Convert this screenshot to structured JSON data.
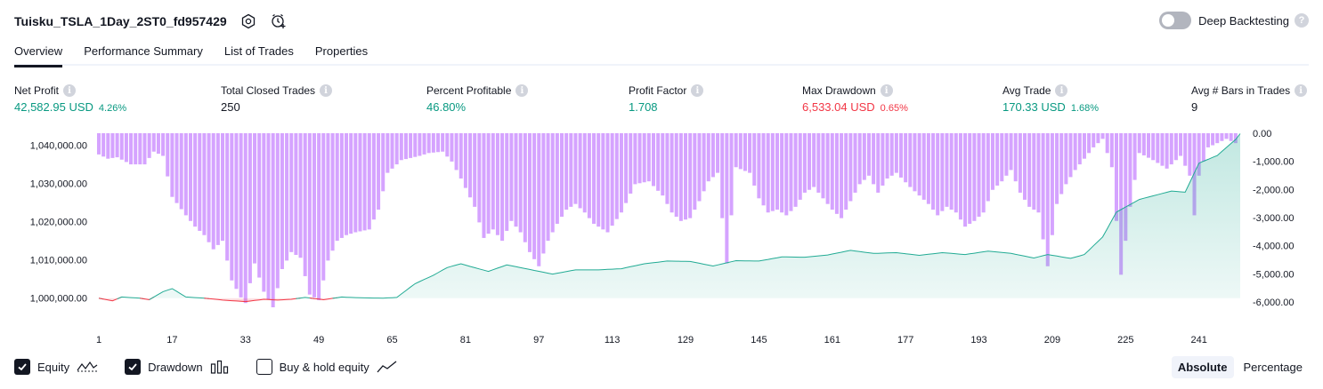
{
  "header": {
    "title": "Tuisku_TSLA_1Day_2ST0_fd957429",
    "deep_backtesting_label": "Deep Backtesting",
    "deep_backtesting_on": false
  },
  "tabs": [
    {
      "label": "Overview",
      "active": true
    },
    {
      "label": "Performance Summary",
      "active": false
    },
    {
      "label": "List of Trades",
      "active": false
    },
    {
      "label": "Properties",
      "active": false
    }
  ],
  "metrics": [
    {
      "label": "Net Profit",
      "value": "42,582.95 USD",
      "pct": "4.26%",
      "tone": "green"
    },
    {
      "label": "Total Closed Trades",
      "value": "250",
      "pct": "",
      "tone": "dark"
    },
    {
      "label": "Percent Profitable",
      "value": "46.80%",
      "pct": "",
      "tone": "green"
    },
    {
      "label": "Profit Factor",
      "value": "1.708",
      "pct": "",
      "tone": "green"
    },
    {
      "label": "Max Drawdown",
      "value": "6,533.04 USD",
      "pct": "0.65%",
      "tone": "red"
    },
    {
      "label": "Avg Trade",
      "value": "170.33 USD",
      "pct": "1.68%",
      "tone": "green"
    },
    {
      "label": "Avg # Bars in Trades",
      "value": "9",
      "pct": "",
      "tone": "dark"
    }
  ],
  "chart_data": {
    "type": "area",
    "x_ticks": [
      1,
      17,
      33,
      49,
      65,
      81,
      97,
      113,
      129,
      145,
      161,
      177,
      193,
      209,
      225,
      241
    ],
    "x_range": [
      1,
      250
    ],
    "left_axis": {
      "ticks": [
        "1,040,000.00",
        "1,030,000.00",
        "1,020,000.00",
        "1,010,000.00",
        "1,000,000.00"
      ],
      "tick_values": [
        1040000,
        1030000,
        1020000,
        1010000,
        1000000
      ],
      "range": [
        997500,
        1043000
      ]
    },
    "right_axis": {
      "ticks": [
        "0.00",
        "-1,000.00",
        "-2,000.00",
        "-3,000.00",
        "-4,000.00",
        "-5,000.00",
        "-6,000.00"
      ],
      "tick_values": [
        0,
        -1000,
        -2000,
        -3000,
        -4000,
        -5000,
        -6000
      ],
      "range": [
        -6150,
        0
      ]
    },
    "equity_anchors": [
      [
        1,
        1000000
      ],
      [
        4,
        999300
      ],
      [
        6,
        1000300
      ],
      [
        10,
        1000000
      ],
      [
        12,
        999600
      ],
      [
        15,
        1001700
      ],
      [
        17,
        1002500
      ],
      [
        20,
        1000300
      ],
      [
        24,
        1000000
      ],
      [
        28,
        999500
      ],
      [
        33,
        999100
      ],
      [
        37,
        999700
      ],
      [
        40,
        999500
      ],
      [
        43,
        999700
      ],
      [
        46,
        1000200
      ],
      [
        50,
        999600
      ],
      [
        54,
        1000300
      ],
      [
        58,
        1000100
      ],
      [
        63,
        1000000
      ],
      [
        66,
        1000200
      ],
      [
        70,
        1003800
      ],
      [
        74,
        1006000
      ],
      [
        77,
        1008000
      ],
      [
        80,
        1009000
      ],
      [
        82,
        1008300
      ],
      [
        86,
        1007000
      ],
      [
        90,
        1008700
      ],
      [
        95,
        1007500
      ],
      [
        100,
        1006300
      ],
      [
        105,
        1007400
      ],
      [
        110,
        1007400
      ],
      [
        115,
        1007700
      ],
      [
        120,
        1009000
      ],
      [
        125,
        1009700
      ],
      [
        130,
        1009600
      ],
      [
        135,
        1008400
      ],
      [
        140,
        1009800
      ],
      [
        145,
        1009700
      ],
      [
        150,
        1010800
      ],
      [
        155,
        1010700
      ],
      [
        160,
        1011300
      ],
      [
        165,
        1012500
      ],
      [
        170,
        1011700
      ],
      [
        175,
        1011900
      ],
      [
        180,
        1011200
      ],
      [
        185,
        1011900
      ],
      [
        190,
        1011400
      ],
      [
        195,
        1012300
      ],
      [
        200,
        1011700
      ],
      [
        205,
        1010500
      ],
      [
        208,
        1011400
      ],
      [
        213,
        1010400
      ],
      [
        216,
        1011400
      ],
      [
        220,
        1016000
      ],
      [
        223,
        1022500
      ],
      [
        228,
        1025800
      ],
      [
        235,
        1028000
      ],
      [
        238,
        1027700
      ],
      [
        241,
        1035300
      ],
      [
        245,
        1037300
      ],
      [
        249,
        1041500
      ],
      [
        250,
        1043000
      ]
    ],
    "drawdown_anchors": [
      [
        1,
        -750
      ],
      [
        3,
        -900
      ],
      [
        5,
        -850
      ],
      [
        8,
        -1100
      ],
      [
        11,
        -1100
      ],
      [
        13,
        -650
      ],
      [
        15,
        -800
      ],
      [
        17,
        -2250
      ],
      [
        20,
        -2900
      ],
      [
        22,
        -3300
      ],
      [
        24,
        -3600
      ],
      [
        26,
        -4100
      ],
      [
        28,
        -3800
      ],
      [
        30,
        -5200
      ],
      [
        32,
        -5800
      ],
      [
        33,
        -6000
      ],
      [
        35,
        -4600
      ],
      [
        37,
        -5600
      ],
      [
        39,
        -6150
      ],
      [
        41,
        -4800
      ],
      [
        43,
        -4200
      ],
      [
        45,
        -4400
      ],
      [
        47,
        -5700
      ],
      [
        49,
        -5900
      ],
      [
        51,
        -4500
      ],
      [
        53,
        -3800
      ],
      [
        55,
        -3600
      ],
      [
        57,
        -3500
      ],
      [
        60,
        -3400
      ],
      [
        62,
        -2700
      ],
      [
        64,
        -1400
      ],
      [
        67,
        -950
      ],
      [
        71,
        -800
      ],
      [
        73,
        -700
      ],
      [
        76,
        -650
      ],
      [
        78,
        -1000
      ],
      [
        80,
        -1600
      ],
      [
        83,
        -2600
      ],
      [
        85,
        -3700
      ],
      [
        87,
        -3400
      ],
      [
        89,
        -3800
      ],
      [
        91,
        -3100
      ],
      [
        93,
        -3500
      ],
      [
        95,
        -4200
      ],
      [
        97,
        -4700
      ],
      [
        99,
        -3800
      ],
      [
        101,
        -3200
      ],
      [
        103,
        -2700
      ],
      [
        105,
        -2500
      ],
      [
        107,
        -2800
      ],
      [
        109,
        -3200
      ],
      [
        112,
        -3500
      ],
      [
        115,
        -2800
      ],
      [
        118,
        -1800
      ],
      [
        121,
        -1700
      ],
      [
        124,
        -2200
      ],
      [
        126,
        -2800
      ],
      [
        128,
        -3100
      ],
      [
        130,
        -3000
      ],
      [
        132,
        -2400
      ],
      [
        134,
        -1700
      ],
      [
        136,
        -1400
      ],
      [
        138,
        -4600
      ],
      [
        140,
        -1200
      ],
      [
        143,
        -1400
      ],
      [
        145,
        -2300
      ],
      [
        147,
        -2800
      ],
      [
        149,
        -2700
      ],
      [
        151,
        -2900
      ],
      [
        153,
        -2600
      ],
      [
        155,
        -2100
      ],
      [
        157,
        -1900
      ],
      [
        159,
        -2300
      ],
      [
        161,
        -2700
      ],
      [
        163,
        -3000
      ],
      [
        165,
        -2400
      ],
      [
        167,
        -1800
      ],
      [
        169,
        -1500
      ],
      [
        171,
        -2100
      ],
      [
        173,
        -1600
      ],
      [
        175,
        -1400
      ],
      [
        178,
        -1900
      ],
      [
        180,
        -2200
      ],
      [
        182,
        -2500
      ],
      [
        184,
        -2900
      ],
      [
        186,
        -2600
      ],
      [
        188,
        -2800
      ],
      [
        190,
        -3300
      ],
      [
        192,
        -3100
      ],
      [
        194,
        -2800
      ],
      [
        196,
        -2000
      ],
      [
        198,
        -1700
      ],
      [
        200,
        -1300
      ],
      [
        202,
        -2100
      ],
      [
        204,
        -2600
      ],
      [
        206,
        -2800
      ],
      [
        208,
        -4700
      ],
      [
        210,
        -2500
      ],
      [
        212,
        -1800
      ],
      [
        214,
        -1300
      ],
      [
        216,
        -900
      ],
      [
        218,
        -500
      ],
      [
        220,
        -200
      ],
      [
        222,
        -1200
      ],
      [
        224,
        -5000
      ],
      [
        226,
        -2600
      ],
      [
        228,
        -700
      ],
      [
        231,
        -950
      ],
      [
        234,
        -1250
      ],
      [
        237,
        -800
      ],
      [
        239,
        -1500
      ],
      [
        240,
        -2900
      ],
      [
        241,
        -1500
      ],
      [
        243,
        -500
      ],
      [
        245,
        -350
      ],
      [
        247,
        -200
      ],
      [
        249,
        -350
      ],
      [
        250,
        0
      ]
    ]
  },
  "legend": [
    {
      "label": "Equity",
      "checked": true
    },
    {
      "label": "Drawdown",
      "checked": true
    },
    {
      "label": "Buy & hold equity",
      "checked": false
    }
  ],
  "modes": [
    {
      "label": "Absolute",
      "active": true
    },
    {
      "label": "Percentage",
      "active": false
    }
  ],
  "colors": {
    "equity_up": "#22ab94",
    "equity_down": "#f23645",
    "drawdown_bar": "#ce93ff"
  }
}
